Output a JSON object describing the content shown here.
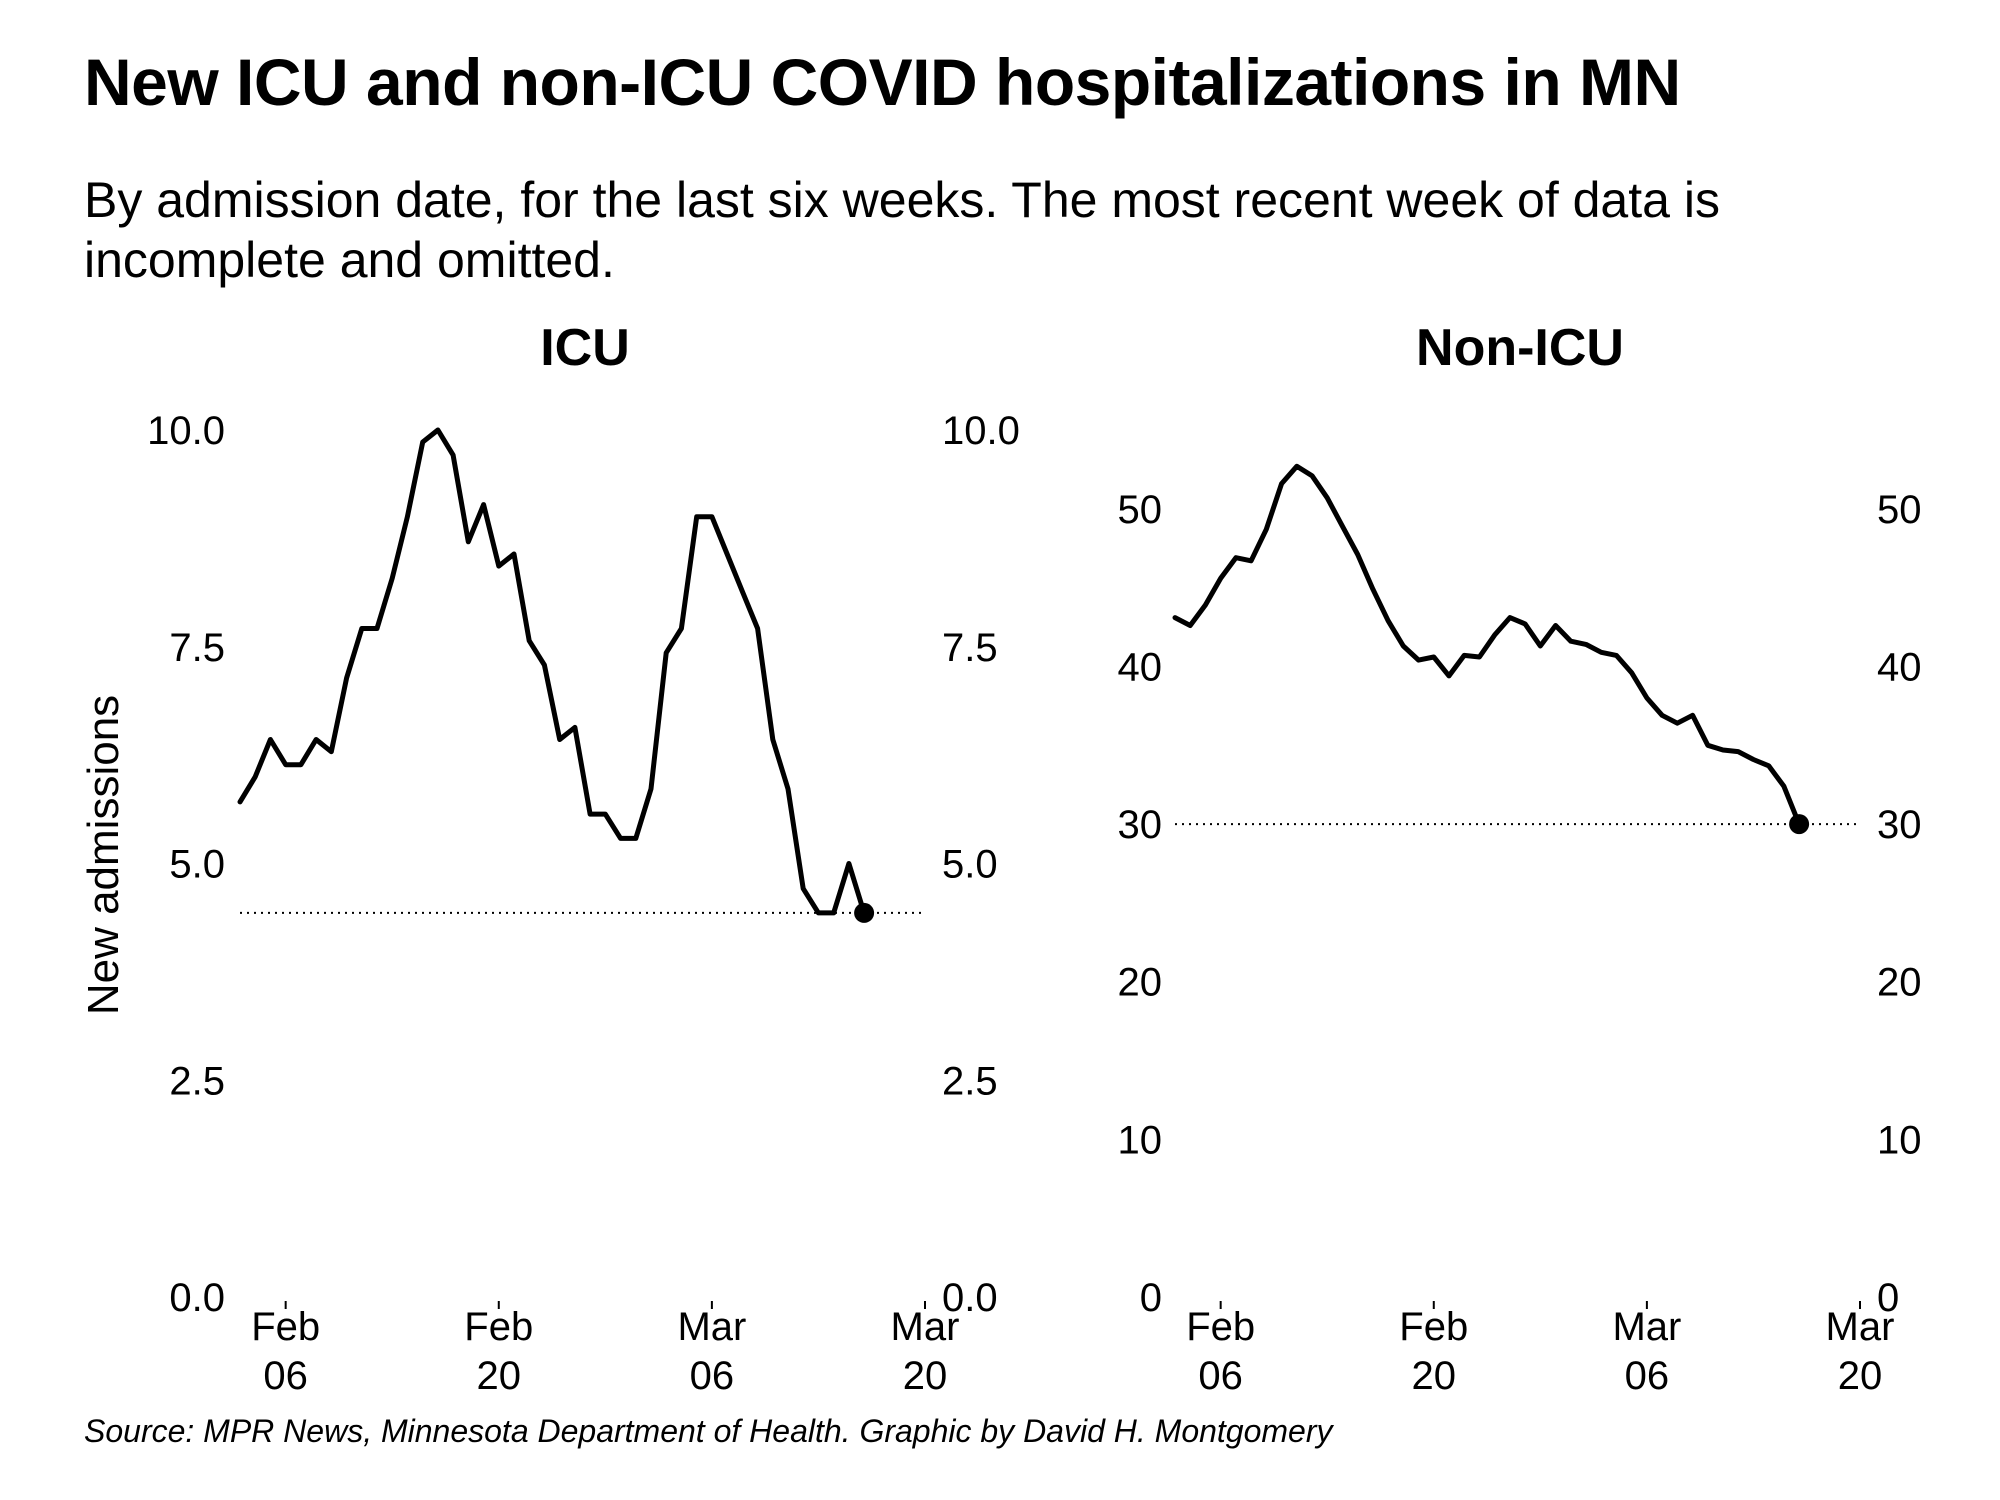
{
  "header": {
    "title": "New ICU and non-ICU COVID hospitalizations in MN",
    "subtitle": "By admission date, for the last six weeks. The most recent week of data is incomplete and omitted."
  },
  "footer": {
    "source": "Source: MPR News, Minnesota Department of Health. Graphic by David H. Montgomery"
  },
  "chart_data": [
    {
      "type": "line",
      "title": "ICU",
      "ylabel": "New admissions",
      "xlabel": "",
      "x_start": "2022-01-30",
      "x_ticks": [
        [
          "Feb",
          "06"
        ],
        [
          "Feb",
          "20"
        ],
        [
          "Mar",
          "06"
        ],
        [
          "Mar",
          "20"
        ]
      ],
      "x_tick_days": [
        7,
        21,
        35,
        49
      ],
      "xlim": [
        4,
        49
      ],
      "ylim": [
        0,
        10
      ],
      "y_ticks": [
        "0.0",
        "2.5",
        "5.0",
        "7.5",
        "10.0"
      ],
      "y_tick_values": [
        0,
        2.5,
        5,
        7.5,
        10
      ],
      "reference_line": 4.43,
      "series": [
        {
          "values": [
            5.71,
            6.0,
            6.43,
            6.14,
            6.14,
            6.43,
            6.29,
            7.14,
            7.71,
            7.71,
            8.29,
            9.0,
            9.86,
            10.0,
            9.71,
            8.71,
            9.14,
            8.43,
            8.57,
            7.57,
            7.29,
            6.43,
            6.57,
            5.57,
            5.57,
            5.29,
            5.29,
            5.86,
            7.43,
            7.71,
            9.0,
            9.0,
            8.57,
            8.14,
            7.71,
            6.43,
            5.86,
            4.71,
            4.43,
            4.43,
            5.0,
            4.43
          ]
        }
      ]
    },
    {
      "type": "line",
      "title": "Non-ICU",
      "ylabel": "",
      "xlabel": "",
      "x_start": "2022-01-30",
      "x_ticks": [
        [
          "Feb",
          "06"
        ],
        [
          "Feb",
          "20"
        ],
        [
          "Mar",
          "06"
        ],
        [
          "Mar",
          "20"
        ]
      ],
      "x_tick_days": [
        7,
        21,
        35,
        49
      ],
      "xlim": [
        4,
        49
      ],
      "ylim": [
        0,
        55
      ],
      "y_ticks": [
        "0",
        "10",
        "20",
        "30",
        "40",
        "50"
      ],
      "y_tick_values": [
        0,
        10,
        20,
        30,
        40,
        50
      ],
      "reference_line": 30.0,
      "series": [
        {
          "values": [
            43.1,
            42.6,
            43.9,
            45.6,
            46.9,
            46.7,
            48.7,
            51.6,
            52.7,
            52.1,
            50.7,
            48.9,
            47.1,
            44.9,
            42.9,
            41.3,
            40.4,
            40.6,
            39.4,
            40.7,
            40.6,
            42.0,
            43.1,
            42.7,
            41.3,
            42.6,
            41.6,
            41.4,
            40.9,
            40.7,
            39.6,
            38.0,
            36.9,
            36.4,
            36.9,
            35.0,
            34.7,
            34.6,
            34.1,
            33.7,
            32.4,
            30.0
          ]
        }
      ]
    }
  ]
}
